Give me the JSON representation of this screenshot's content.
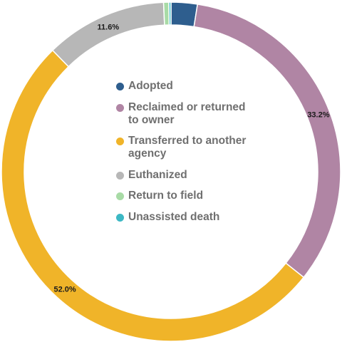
{
  "chart_data": {
    "type": "donut",
    "title": "",
    "categories": [
      "Adopted",
      "Reclaimed or returned to owner",
      "Transferred to another agency",
      "Euthanized",
      "Return to field",
      "Unassisted death"
    ],
    "values": [
      2.5,
      33.2,
      52.0,
      11.6,
      0.5,
      0.2
    ],
    "value_labels": [
      "",
      "33.2%",
      "52.0%",
      "11.6%",
      "",
      ""
    ],
    "colors": [
      "#2e5e8e",
      "#b085a4",
      "#f0b429",
      "#b7b7b7",
      "#a8dba6",
      "#3cb8c4"
    ],
    "legend": {
      "placement": "center",
      "items": [
        {
          "label": "Adopted",
          "color": "#2e5e8e"
        },
        {
          "label": "Reclaimed or returned to owner",
          "color": "#b085a4"
        },
        {
          "label": "Transferred to another agency",
          "color": "#f0b429"
        },
        {
          "label": "Euthanized",
          "color": "#b7b7b7"
        },
        {
          "label": "Return to field",
          "color": "#a8dba6"
        },
        {
          "label": "Unassisted death",
          "color": "#3cb8c4"
        }
      ]
    }
  }
}
